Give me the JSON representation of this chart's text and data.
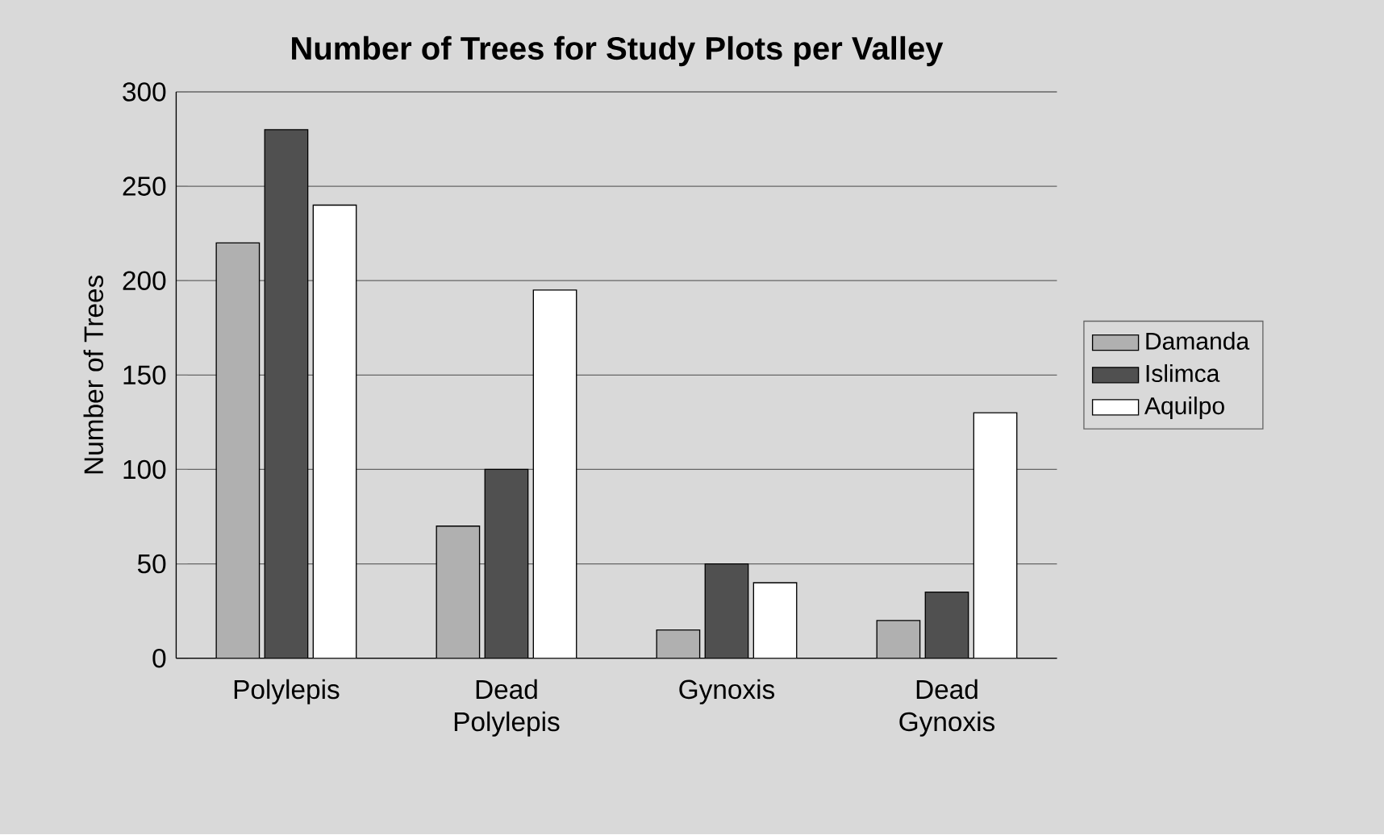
{
  "chart_data": {
    "type": "bar",
    "title": "Number of Trees for Study Plots per Valley",
    "ylabel": "Number of Trees",
    "categories": [
      "Polylepis",
      "Dead Polylepis",
      "Gynoxis",
      "Dead Gynoxis"
    ],
    "series": [
      {
        "name": "Damanda",
        "color": "#b0b0b0",
        "values": [
          220,
          70,
          15,
          20
        ]
      },
      {
        "name": "Islimca",
        "color": "#505050",
        "values": [
          280,
          100,
          50,
          35
        ]
      },
      {
        "name": "Aquilpo",
        "color": "#ffffff",
        "values": [
          240,
          195,
          40,
          130
        ]
      }
    ],
    "ylim": [
      0,
      300
    ],
    "yticks": [
      0,
      50,
      100,
      150,
      200,
      250,
      300
    ],
    "grid": "y",
    "legend": "right"
  }
}
